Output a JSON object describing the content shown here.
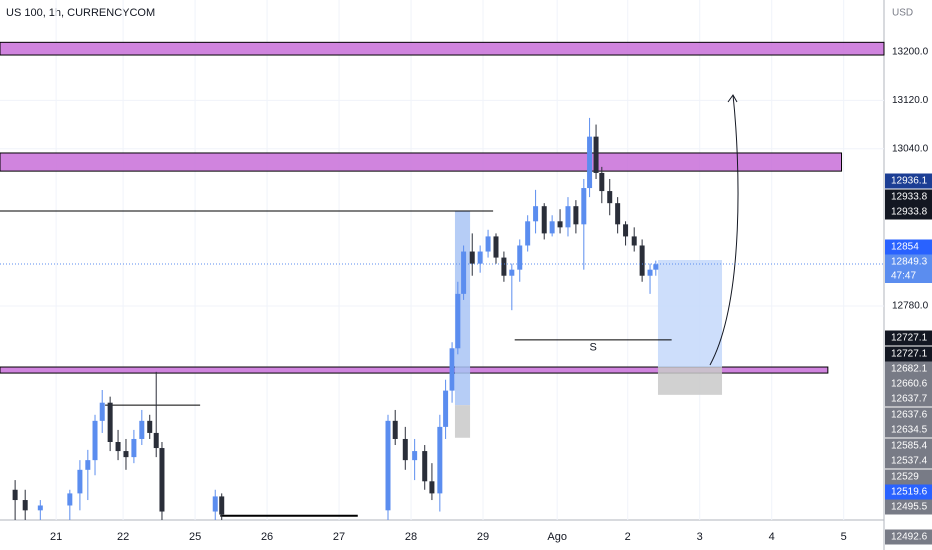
{
  "chart_data": {
    "type": "candlestick",
    "title": "US 100, 1h, CURRENCYCOM",
    "currency": "USD",
    "xlim": [
      -0.78,
      11.5
    ],
    "xticks": [
      {
        "value": 0,
        "label": "21"
      },
      {
        "value": 0.93,
        "label": "22"
      },
      {
        "value": 1.93,
        "label": "25"
      },
      {
        "value": 2.93,
        "label": "26"
      },
      {
        "value": 3.93,
        "label": "27"
      },
      {
        "value": 4.93,
        "label": "28"
      },
      {
        "value": 5.93,
        "label": "29"
      },
      {
        "value": 6.96,
        "label": "Ago"
      },
      {
        "value": 7.94,
        "label": "2"
      },
      {
        "value": 8.94,
        "label": "3"
      },
      {
        "value": 9.94,
        "label": "4"
      },
      {
        "value": 10.94,
        "label": "5"
      }
    ],
    "ylim": [
      12426,
      13286
    ],
    "yticks": [
      {
        "value": 12780,
        "label": "12780.0"
      },
      {
        "value": 13040,
        "label": "13040.0"
      },
      {
        "value": 13120,
        "label": "13120.0"
      },
      {
        "value": 13200,
        "label": "13200.0"
      }
    ],
    "grid": true,
    "up_color": "#5b8def",
    "down_color": "#2a2e39",
    "x": [
      -0.57,
      -0.43,
      -0.22,
      0.19,
      0.33,
      0.44,
      0.54,
      0.64,
      0.75,
      0.86,
      0.97,
      1.08,
      1.19,
      1.3,
      1.39,
      1.47,
      2.21,
      2.3,
      4.61,
      4.71,
      4.85,
      4.98,
      5.12,
      5.22,
      5.33,
      5.41,
      5.5,
      5.58,
      5.66,
      5.78,
      5.89,
      6.0,
      6.11,
      6.22,
      6.33,
      6.44,
      6.55,
      6.66,
      6.78,
      6.89,
      7.0,
      7.11,
      7.22,
      7.33,
      7.41,
      7.5,
      7.58,
      7.69,
      7.8,
      7.91,
      8.03,
      8.14,
      8.25,
      8.33
    ],
    "open": [
      12476,
      12459,
      12442,
      12450,
      12470,
      12509,
      12525,
      12590,
      12620,
      12555,
      12540,
      12530,
      12560,
      12590,
      12570,
      12545,
      12440,
      12465,
      12442,
      12590,
      12560,
      12525,
      12540,
      12490,
      12470,
      12580,
      12640,
      12710,
      12800,
      12870,
      12850,
      12870,
      12895,
      12860,
      12830,
      12840,
      12880,
      12920,
      12945,
      12900,
      12920,
      12910,
      12945,
      12915,
      12975,
      13060,
      13000,
      12970,
      12950,
      12915,
      12895,
      12880,
      12830,
      12840
    ],
    "high": [
      12492,
      12476,
      12459,
      12476,
      12525,
      12542,
      12600,
      12641,
      12630,
      12575,
      12560,
      12575,
      12608,
      12600,
      12671,
      12555,
      12476,
      12470,
      12600,
      12608,
      12580,
      12560,
      12550,
      12520,
      12600,
      12658,
      12720,
      12820,
      12880,
      12900,
      12880,
      12906,
      12900,
      12870,
      12850,
      12890,
      12930,
      12972,
      12950,
      12930,
      12940,
      12960,
      12955,
      12990,
      13091,
      13080,
      13010,
      12990,
      12960,
      12920,
      12910,
      12890,
      12850,
      12855
    ],
    "low": [
      12426,
      12426,
      12426,
      12426,
      12442,
      12459,
      12500,
      12570,
      12540,
      12525,
      12509,
      12520,
      12550,
      12560,
      12530,
      12426,
      12426,
      12426,
      12426,
      12550,
      12509,
      12492,
      12476,
      12459,
      12440,
      12560,
      12620,
      12700,
      12790,
      12830,
      12835,
      12860,
      12850,
      12820,
      12773,
      12820,
      12870,
      12900,
      12890,
      12895,
      12900,
      12895,
      12900,
      12840,
      12960,
      12990,
      12950,
      12930,
      12900,
      12880,
      12870,
      12820,
      12800,
      12830
    ],
    "close": [
      12459,
      12442,
      12450,
      12470,
      12509,
      12525,
      12590,
      12620,
      12555,
      12540,
      12530,
      12560,
      12590,
      12570,
      12545,
      12440,
      12465,
      12435,
      12590,
      12560,
      12525,
      12540,
      12490,
      12470,
      12580,
      12640,
      12710,
      12800,
      12870,
      12850,
      12870,
      12895,
      12860,
      12830,
      12840,
      12880,
      12920,
      12945,
      12900,
      12920,
      12910,
      12945,
      12915,
      12975,
      13060,
      13000,
      12970,
      12950,
      12915,
      12895,
      12880,
      12830,
      12840,
      12849
    ],
    "zones": [
      {
        "from": 13195,
        "to": 13216,
        "x0": -0.78,
        "x1": 11.5,
        "color": "#c86fd8"
      },
      {
        "from": 13003,
        "to": 13033,
        "x0": -0.78,
        "x1": 10.91,
        "color": "#c86fd8"
      },
      {
        "from": 12669,
        "to": 12679,
        "x0": -0.78,
        "x1": 10.72,
        "color": "#c86fd8"
      },
      {
        "from": 12616,
        "to": 12937,
        "x0": 5.54,
        "x1": 5.75,
        "color": "#a9c4f5"
      },
      {
        "from": 12562,
        "to": 12616,
        "x0": 5.54,
        "x1": 5.75,
        "color": "#c9c9c9"
      },
      {
        "from": 12679,
        "to": 12856,
        "x0": 8.36,
        "x1": 9.25,
        "color": "#c4d8fa"
      },
      {
        "from": 12633,
        "to": 12679,
        "x0": 8.36,
        "x1": 9.25,
        "color": "#c9c9c9"
      }
    ],
    "levels": [
      {
        "price": 12937,
        "x0": -0.78,
        "x1": 6.07
      },
      {
        "price": 12616,
        "x0": 0.68,
        "x1": 2.0
      },
      {
        "price": 12433,
        "x0": 2.28,
        "x1": 4.19
      },
      {
        "price": 12724,
        "x0": 6.37,
        "x1": 8.55,
        "label": "S"
      }
    ],
    "price_badges": [
      {
        "value": 12936.1,
        "color": "#1c3e94"
      },
      {
        "value": 12933.8,
        "color": "#131722"
      },
      {
        "value": 12933.8,
        "color": "#131722"
      },
      {
        "value": 12854.0,
        "color": "#2962ff"
      },
      {
        "value": 12849.3,
        "color": "#5b8def"
      },
      {
        "value": 12727.1,
        "color": "#131722"
      },
      {
        "value": 12727.1,
        "color": "#131722"
      },
      {
        "value": 12682.1,
        "color": "#787b86"
      },
      {
        "value": 12660.6,
        "color": "#787b86"
      },
      {
        "value": 12637.7,
        "color": "#787b86"
      },
      {
        "value": 12637.6,
        "color": "#787b86"
      },
      {
        "value": 12634.5,
        "color": "#787b86"
      },
      {
        "value": 12585.4,
        "color": "#787b86"
      },
      {
        "value": 12537.4,
        "color": "#787b86"
      },
      {
        "value": 12529.0,
        "color": "#787b86"
      },
      {
        "value": 12519.6,
        "color": "#2962ff"
      },
      {
        "value": 12495.5,
        "color": "#787b86"
      },
      {
        "value": 12492.6,
        "color": "#787b86"
      }
    ],
    "countdown": "47:47"
  }
}
